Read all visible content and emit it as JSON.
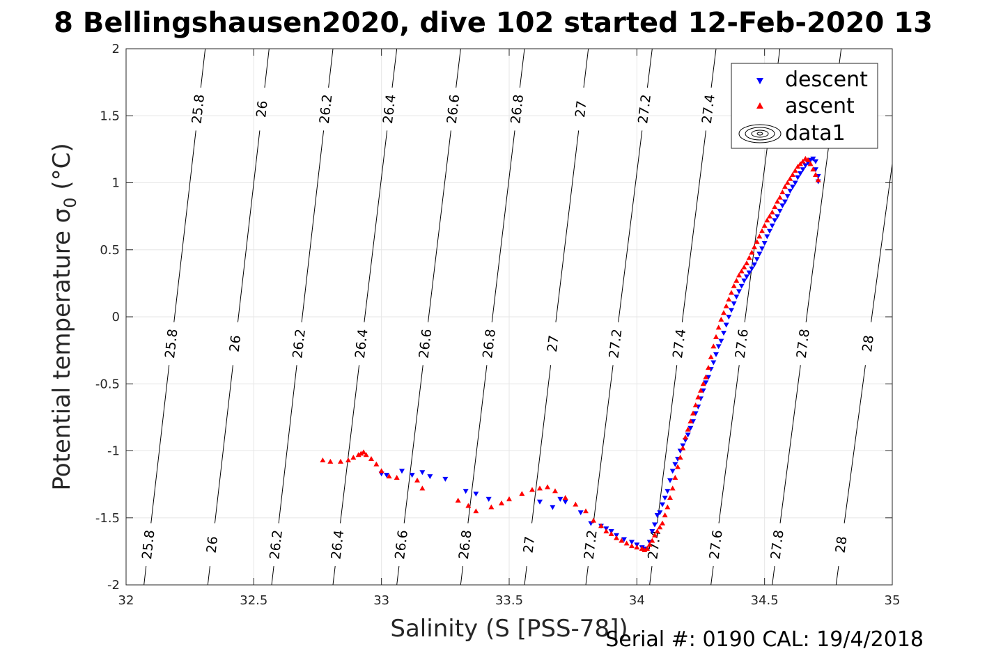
{
  "figure": {
    "title": "8 Bellingshausen2020, dive 102 started 12-Feb-2020 13",
    "serial_text": "Serial #: 0190  CAL: 19/4/2018",
    "colors": {
      "descent": "#0000ff",
      "ascent": "#ff0000",
      "contour": "#000000",
      "grid": "#e6e6e6"
    }
  },
  "chart_data": {
    "type": "scatter",
    "xlabel": "Salinity (S [PSS-78])",
    "ylabel": "Potential temperature σ",
    "ylabel_sub": "0",
    "ylabel_unit": " (°C)",
    "xlim": [
      32,
      35
    ],
    "ylim": [
      -2,
      2
    ],
    "xticks": [
      32,
      32.5,
      33,
      33.5,
      34,
      34.5,
      35
    ],
    "yticks": [
      -2,
      -1.5,
      -1,
      -0.5,
      0,
      0.5,
      1,
      1.5,
      2
    ],
    "grid": true,
    "legend": {
      "placement": "top-right",
      "entries": [
        "descent",
        "ascent",
        "data1"
      ]
    },
    "contours": [
      {
        "label": "25.8",
        "x_at_ymin": 32.07,
        "x_at_ymax": 32.31
      },
      {
        "label": "26",
        "x_at_ymin": 32.32,
        "x_at_ymax": 32.56
      },
      {
        "label": "26.2",
        "x_at_ymin": 32.57,
        "x_at_ymax": 32.81
      },
      {
        "label": "26.4",
        "x_at_ymin": 32.81,
        "x_at_ymax": 33.06
      },
      {
        "label": "26.6",
        "x_at_ymin": 33.06,
        "x_at_ymax": 33.31
      },
      {
        "label": "26.8",
        "x_at_ymin": 33.31,
        "x_at_ymax": 33.56
      },
      {
        "label": "27",
        "x_at_ymin": 33.56,
        "x_at_ymax": 33.81
      },
      {
        "label": "27.2",
        "x_at_ymin": 33.8,
        "x_at_ymax": 34.06
      },
      {
        "label": "27.4",
        "x_at_ymin": 34.05,
        "x_at_ymax": 34.31
      },
      {
        "label": "27.6",
        "x_at_ymin": 34.29,
        "x_at_ymax": 34.56
      },
      {
        "label": "27.8",
        "x_at_ymin": 34.53,
        "x_at_ymax": 34.8
      },
      {
        "label": "28",
        "x_at_ymin": 34.78,
        "x_at_ymax": 35.06
      }
    ],
    "series": [
      {
        "name": "descent",
        "marker": "triangle-down",
        "x": [
          33.0,
          33.02,
          33.08,
          33.12,
          33.16,
          33.19,
          33.25,
          33.33,
          33.37,
          33.42,
          33.62,
          33.67,
          33.7,
          33.72,
          33.78,
          33.82,
          33.86,
          33.88,
          33.9,
          33.92,
          33.95,
          33.98,
          34.0,
          34.02,
          34.03,
          34.05,
          34.06,
          34.07,
          34.08,
          34.09,
          34.1,
          34.11,
          34.12,
          34.13,
          34.14,
          34.15,
          34.16,
          34.17,
          34.18,
          34.19,
          34.2,
          34.21,
          34.22,
          34.23,
          34.24,
          34.25,
          34.26,
          34.27,
          34.28,
          34.29,
          34.3,
          34.31,
          34.32,
          34.33,
          34.34,
          34.35,
          34.36,
          34.37,
          34.38,
          34.39,
          34.4,
          34.41,
          34.42,
          34.43,
          34.44,
          34.45,
          34.46,
          34.47,
          34.48,
          34.49,
          34.5,
          34.51,
          34.52,
          34.53,
          34.54,
          34.55,
          34.56,
          34.57,
          34.58,
          34.59,
          34.6,
          34.61,
          34.62,
          34.63,
          34.64,
          34.65,
          34.66,
          34.67,
          34.68,
          34.69,
          34.7,
          34.7,
          34.71,
          34.71
        ],
        "y": [
          -1.17,
          -1.18,
          -1.15,
          -1.18,
          -1.16,
          -1.19,
          -1.21,
          -1.3,
          -1.32,
          -1.36,
          -1.38,
          -1.42,
          -1.36,
          -1.38,
          -1.46,
          -1.54,
          -1.56,
          -1.58,
          -1.6,
          -1.63,
          -1.66,
          -1.68,
          -1.7,
          -1.72,
          -1.73,
          -1.68,
          -1.6,
          -1.55,
          -1.48,
          -1.46,
          -1.4,
          -1.35,
          -1.3,
          -1.22,
          -1.15,
          -1.1,
          -1.06,
          -1.0,
          -0.96,
          -0.92,
          -0.88,
          -0.83,
          -0.78,
          -0.72,
          -0.67,
          -0.61,
          -0.55,
          -0.49,
          -0.45,
          -0.39,
          -0.34,
          -0.28,
          -0.22,
          -0.18,
          -0.12,
          -0.06,
          0.0,
          0.05,
          0.1,
          0.15,
          0.19,
          0.23,
          0.27,
          0.3,
          0.33,
          0.36,
          0.39,
          0.43,
          0.47,
          0.51,
          0.55,
          0.6,
          0.64,
          0.68,
          0.72,
          0.75,
          0.79,
          0.83,
          0.86,
          0.9,
          0.94,
          0.97,
          1.0,
          1.04,
          1.07,
          1.1,
          1.13,
          1.15,
          1.17,
          1.18,
          1.16,
          1.1,
          1.05,
          1.01
        ]
      },
      {
        "name": "ascent",
        "marker": "triangle-up",
        "x": [
          32.77,
          32.8,
          32.84,
          32.87,
          32.89,
          32.91,
          32.92,
          32.93,
          32.94,
          32.96,
          32.98,
          33.0,
          33.03,
          33.06,
          33.14,
          33.16,
          33.3,
          33.34,
          33.37,
          33.43,
          33.47,
          33.5,
          33.55,
          33.59,
          33.62,
          33.65,
          33.68,
          33.72,
          33.76,
          33.8,
          33.83,
          33.86,
          33.88,
          33.9,
          33.92,
          33.94,
          33.96,
          33.98,
          34.0,
          34.02,
          34.03,
          34.04,
          34.05,
          34.06,
          34.07,
          34.08,
          34.09,
          34.1,
          34.11,
          34.12,
          34.13,
          34.14,
          34.15,
          34.16,
          34.17,
          34.18,
          34.19,
          34.2,
          34.21,
          34.22,
          34.23,
          34.24,
          34.25,
          34.26,
          34.27,
          34.28,
          34.29,
          34.3,
          34.31,
          34.32,
          34.33,
          34.34,
          34.35,
          34.36,
          34.37,
          34.38,
          34.39,
          34.4,
          34.41,
          34.42,
          34.43,
          34.44,
          34.45,
          34.46,
          34.47,
          34.48,
          34.49,
          34.5,
          34.51,
          34.52,
          34.53,
          34.54,
          34.55,
          34.56,
          34.57,
          34.58,
          34.59,
          34.6,
          34.61,
          34.62,
          34.63,
          34.64,
          34.65,
          34.66,
          34.67,
          34.68,
          34.69,
          34.7,
          34.71
        ],
        "y": [
          -1.07,
          -1.08,
          -1.08,
          -1.07,
          -1.05,
          -1.03,
          -1.02,
          -1.01,
          -1.03,
          -1.06,
          -1.1,
          -1.15,
          -1.19,
          -1.2,
          -1.22,
          -1.28,
          -1.37,
          -1.41,
          -1.45,
          -1.42,
          -1.39,
          -1.36,
          -1.32,
          -1.29,
          -1.28,
          -1.27,
          -1.3,
          -1.35,
          -1.4,
          -1.45,
          -1.52,
          -1.56,
          -1.6,
          -1.62,
          -1.65,
          -1.67,
          -1.69,
          -1.71,
          -1.72,
          -1.73,
          -1.74,
          -1.73,
          -1.7,
          -1.67,
          -1.63,
          -1.6,
          -1.57,
          -1.54,
          -1.48,
          -1.42,
          -1.35,
          -1.28,
          -1.2,
          -1.12,
          -1.05,
          -0.98,
          -0.9,
          -0.84,
          -0.78,
          -0.72,
          -0.66,
          -0.6,
          -0.55,
          -0.5,
          -0.45,
          -0.38,
          -0.3,
          -0.22,
          -0.15,
          -0.08,
          -0.02,
          0.03,
          0.08,
          0.13,
          0.18,
          0.23,
          0.27,
          0.31,
          0.34,
          0.37,
          0.4,
          0.44,
          0.48,
          0.52,
          0.56,
          0.6,
          0.64,
          0.68,
          0.72,
          0.75,
          0.78,
          0.82,
          0.86,
          0.89,
          0.93,
          0.97,
          1.0,
          1.03,
          1.06,
          1.09,
          1.12,
          1.14,
          1.16,
          1.18,
          1.17,
          1.14,
          1.1,
          1.06,
          1.02
        ]
      }
    ]
  }
}
